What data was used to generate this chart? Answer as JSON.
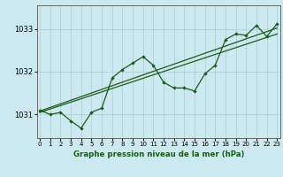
{
  "title": "Graphe pression niveau de la mer (hPa)",
  "bg_color": "#cce8f0",
  "grid_color": "#b0cccc",
  "line_color": "#1a5c1a",
  "x_ticks": [
    0,
    1,
    2,
    3,
    4,
    5,
    6,
    7,
    8,
    9,
    10,
    11,
    12,
    13,
    14,
    15,
    16,
    17,
    18,
    19,
    20,
    21,
    22,
    23
  ],
  "y_ticks": [
    1031,
    1032,
    1033
  ],
  "ylim": [
    1030.45,
    1033.55
  ],
  "xlim": [
    -0.3,
    23.3
  ],
  "series_wiggly": {
    "x": [
      0,
      1,
      2,
      3,
      4,
      5,
      6,
      7,
      8,
      9,
      10,
      11,
      12,
      13,
      14,
      15,
      16,
      17,
      18,
      19,
      20,
      21,
      22,
      23
    ],
    "y": [
      1031.1,
      1031.0,
      1031.05,
      1030.85,
      1030.68,
      1031.05,
      1031.15,
      1031.85,
      1032.05,
      1032.2,
      1032.35,
      1032.15,
      1031.75,
      1031.62,
      1031.62,
      1031.55,
      1031.95,
      1032.15,
      1032.75,
      1032.88,
      1032.85,
      1033.08,
      1032.82,
      1033.12
    ]
  },
  "series_trend1": {
    "x": [
      0,
      23
    ],
    "y": [
      1031.05,
      1032.88
    ]
  },
  "series_trend2": {
    "x": [
      0,
      23
    ],
    "y": [
      1031.08,
      1033.02
    ]
  }
}
